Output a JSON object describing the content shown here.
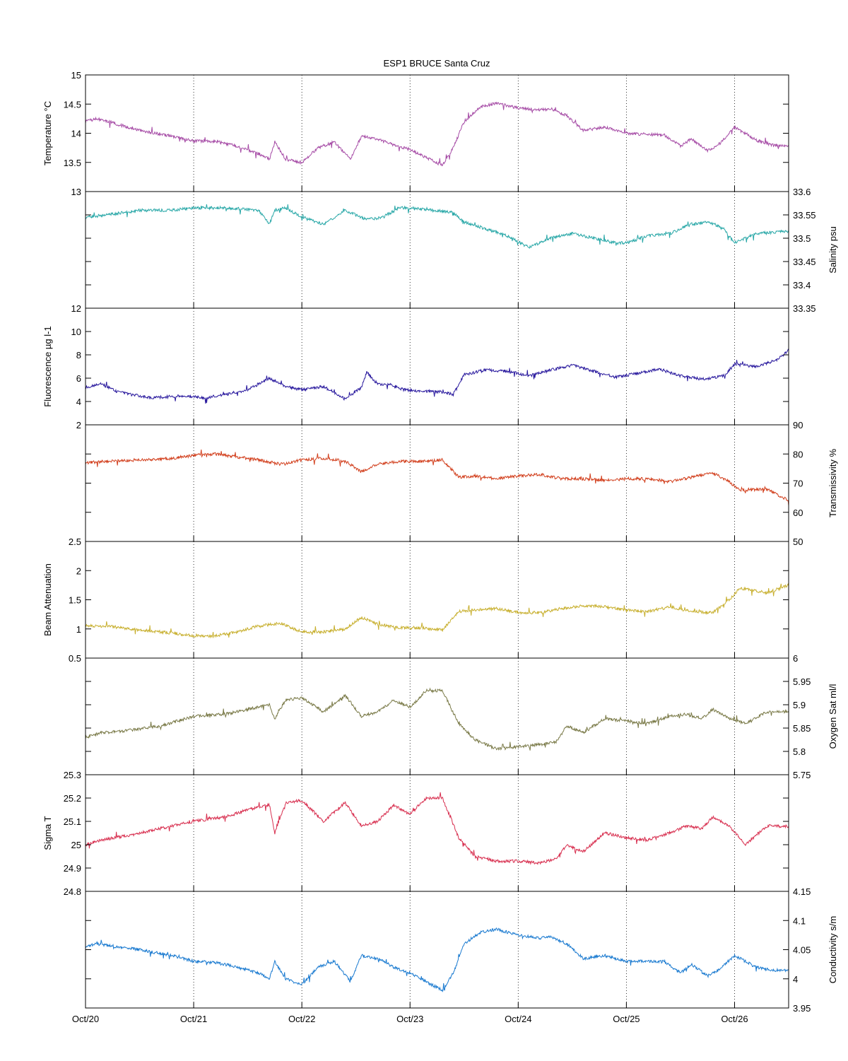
{
  "chart_data": {
    "type": "line",
    "title": "ESP1 BRUCE Santa Cruz",
    "x_range": [
      "Oct/20",
      "Oct/26 12:00"
    ],
    "x_tick_labels": [
      "Oct/20",
      "Oct/21",
      "Oct/22",
      "Oct/23",
      "Oct/24",
      "Oct/25",
      "Oct/26"
    ],
    "x_grid": "dotted vertical lines at each day",
    "panels": [
      {
        "id": "temperature",
        "ylabel": "Temperature °C",
        "axis_side": "left",
        "color": "#a64ca6",
        "ylim": [
          13,
          15
        ],
        "tick_values": [
          13,
          13.5,
          14,
          14.5,
          15
        ],
        "tick_labels": [
          "13",
          "13.5",
          "14",
          "14.5",
          "15"
        ],
        "x": [
          0,
          0.1,
          0.3,
          0.5,
          0.8,
          1.0,
          1.2,
          1.4,
          1.6,
          1.7,
          1.75,
          1.85,
          2.0,
          2.15,
          2.3,
          2.45,
          2.55,
          2.7,
          2.85,
          3.0,
          3.15,
          3.3,
          3.4,
          3.5,
          3.65,
          3.8,
          4.0,
          4.2,
          4.3,
          4.45,
          4.6,
          4.8,
          5.0,
          5.2,
          5.35,
          5.5,
          5.6,
          5.75,
          5.85,
          6.0,
          6.1,
          6.2,
          6.35,
          6.5
        ],
        "y": [
          14.2,
          14.25,
          14.15,
          14.05,
          13.95,
          13.87,
          13.86,
          13.78,
          13.65,
          13.55,
          13.85,
          13.55,
          13.5,
          13.75,
          13.85,
          13.55,
          13.95,
          13.9,
          13.8,
          13.72,
          13.58,
          13.45,
          13.75,
          14.2,
          14.45,
          14.52,
          14.43,
          14.4,
          14.42,
          14.3,
          14.05,
          14.1,
          14.0,
          13.98,
          13.97,
          13.78,
          13.9,
          13.7,
          13.8,
          14.1,
          14.0,
          13.88,
          13.8,
          13.77
        ]
      },
      {
        "id": "salinity",
        "ylabel": "Salinity psu",
        "axis_side": "right",
        "color": "#2aa8a8",
        "ylim": [
          33.35,
          33.6
        ],
        "tick_values": [
          33.35,
          33.4,
          33.45,
          33.5,
          33.55,
          33.6
        ],
        "tick_labels": [
          "33.35",
          "33.4",
          "33.45",
          "33.5",
          "33.55",
          "33.6"
        ],
        "x": [
          0,
          0.2,
          0.5,
          0.8,
          1.0,
          1.3,
          1.6,
          1.7,
          1.75,
          1.85,
          2.0,
          2.2,
          2.4,
          2.6,
          2.75,
          2.9,
          3.0,
          3.2,
          3.4,
          3.5,
          3.7,
          3.9,
          4.1,
          4.3,
          4.5,
          4.7,
          4.9,
          5.0,
          5.2,
          5.4,
          5.6,
          5.75,
          5.9,
          6.0,
          6.2,
          6.5
        ],
        "y": [
          33.545,
          33.55,
          33.56,
          33.56,
          33.565,
          33.565,
          33.56,
          33.53,
          33.56,
          33.565,
          33.545,
          33.53,
          33.56,
          33.54,
          33.545,
          33.565,
          33.565,
          33.56,
          33.555,
          33.535,
          33.52,
          33.505,
          33.48,
          33.5,
          33.51,
          33.5,
          33.49,
          33.49,
          33.505,
          33.51,
          33.53,
          33.535,
          33.52,
          33.49,
          33.51,
          33.515
        ]
      },
      {
        "id": "fluorescence",
        "ylabel": "Fluorescence µg l-1",
        "axis_side": "left",
        "color": "#2a1a9e",
        "ylim": [
          2,
          12
        ],
        "tick_values": [
          2,
          4,
          6,
          8,
          10,
          12
        ],
        "tick_labels": [
          "2",
          "4",
          "6",
          "8",
          "10",
          "12"
        ],
        "x": [
          0,
          0.15,
          0.3,
          0.6,
          0.9,
          1.1,
          1.3,
          1.5,
          1.7,
          1.85,
          2.0,
          2.2,
          2.4,
          2.55,
          2.6,
          2.7,
          2.8,
          2.95,
          3.1,
          3.3,
          3.4,
          3.5,
          3.7,
          3.9,
          4.1,
          4.3,
          4.5,
          4.7,
          4.9,
          5.1,
          5.3,
          5.5,
          5.7,
          5.9,
          6.0,
          6.2,
          6.4,
          6.5
        ],
        "y": [
          5.2,
          5.5,
          4.8,
          4.3,
          4.5,
          4.3,
          4.6,
          5.0,
          6.0,
          5.3,
          5.0,
          5.3,
          4.2,
          5.2,
          6.5,
          5.5,
          5.5,
          5.0,
          4.9,
          4.8,
          4.6,
          6.3,
          6.7,
          6.6,
          6.2,
          6.7,
          7.1,
          6.6,
          6.1,
          6.4,
          6.8,
          6.2,
          5.9,
          6.2,
          7.2,
          7.0,
          7.6,
          8.4
        ]
      },
      {
        "id": "transmissivity",
        "ylabel": "Transmissivity %",
        "axis_side": "right",
        "color": "#d2401e",
        "ylim": [
          50,
          90
        ],
        "tick_values": [
          50,
          60,
          70,
          80,
          90
        ],
        "tick_labels": [
          "50",
          "60",
          "70",
          "80",
          "90"
        ],
        "x": [
          0,
          0.2,
          0.5,
          0.8,
          1.0,
          1.2,
          1.4,
          1.6,
          1.8,
          2.0,
          2.2,
          2.4,
          2.55,
          2.7,
          2.9,
          3.1,
          3.3,
          3.45,
          3.6,
          3.8,
          4.0,
          4.2,
          4.4,
          4.6,
          4.8,
          5.0,
          5.2,
          5.4,
          5.6,
          5.8,
          5.95,
          6.05,
          6.3,
          6.5
        ],
        "y": [
          77,
          77.5,
          78,
          78.5,
          79.5,
          80,
          79,
          78,
          76.5,
          78,
          78.5,
          77.5,
          74,
          76.5,
          77.5,
          77.5,
          78,
          72,
          72.5,
          71.5,
          72.5,
          73,
          71.5,
          71.5,
          71,
          71.5,
          71.5,
          70.5,
          72,
          73.5,
          70.5,
          67.5,
          68,
          64
        ]
      },
      {
        "id": "beam_attenuation",
        "ylabel": "Beam Attenuation",
        "axis_side": "left",
        "color": "#c8b030",
        "ylim": [
          0.5,
          2.5
        ],
        "tick_values": [
          0.5,
          1,
          1.5,
          2,
          2.5
        ],
        "tick_labels": [
          "0.5",
          "1",
          "1.5",
          "2",
          "2.5"
        ],
        "x": [
          0,
          0.2,
          0.5,
          0.8,
          1.0,
          1.2,
          1.4,
          1.6,
          1.8,
          2.0,
          2.2,
          2.4,
          2.55,
          2.7,
          2.9,
          3.1,
          3.3,
          3.45,
          3.6,
          3.8,
          4.0,
          4.2,
          4.4,
          4.6,
          4.8,
          5.0,
          5.2,
          5.4,
          5.6,
          5.8,
          5.95,
          6.05,
          6.3,
          6.5
        ],
        "y": [
          1.05,
          1.05,
          0.98,
          0.93,
          0.88,
          0.88,
          0.95,
          1.05,
          1.1,
          0.95,
          0.95,
          1.0,
          1.2,
          1.08,
          1.02,
          1.02,
          0.98,
          1.3,
          1.32,
          1.35,
          1.28,
          1.28,
          1.35,
          1.4,
          1.38,
          1.32,
          1.3,
          1.38,
          1.3,
          1.28,
          1.5,
          1.7,
          1.62,
          1.75
        ]
      },
      {
        "id": "oxygen",
        "ylabel": "Oxygen Sat ml/l",
        "axis_side": "right",
        "color": "#7a7a48",
        "ylim": [
          5.75,
          6
        ],
        "tick_values": [
          5.75,
          5.8,
          5.85,
          5.9,
          5.95,
          6
        ],
        "tick_labels": [
          "5.75",
          "5.8",
          "5.85",
          "5.9",
          "5.95",
          "6"
        ],
        "x": [
          0,
          0.15,
          0.4,
          0.7,
          1.0,
          1.3,
          1.5,
          1.7,
          1.75,
          1.85,
          2.0,
          2.2,
          2.4,
          2.55,
          2.7,
          2.85,
          3.0,
          3.15,
          3.3,
          3.45,
          3.6,
          3.8,
          4.0,
          4.2,
          4.35,
          4.45,
          4.6,
          4.8,
          5.0,
          5.2,
          5.4,
          5.55,
          5.7,
          5.8,
          5.95,
          6.1,
          6.3,
          6.5
        ],
        "y": [
          5.83,
          5.84,
          5.845,
          5.855,
          5.875,
          5.88,
          5.89,
          5.9,
          5.87,
          5.91,
          5.915,
          5.885,
          5.92,
          5.875,
          5.885,
          5.91,
          5.895,
          5.93,
          5.93,
          5.86,
          5.825,
          5.805,
          5.81,
          5.815,
          5.82,
          5.855,
          5.84,
          5.87,
          5.865,
          5.86,
          5.875,
          5.88,
          5.87,
          5.89,
          5.87,
          5.86,
          5.885,
          5.885
        ]
      },
      {
        "id": "sigma_t",
        "ylabel": "Sigma T",
        "axis_side": "left",
        "color": "#d83050",
        "ylim": [
          24.8,
          25.3
        ],
        "tick_values": [
          24.8,
          24.9,
          25,
          25.1,
          25.2,
          25.3
        ],
        "tick_labels": [
          "24.8",
          "24.9",
          "25",
          "25.1",
          "25.2",
          "25.3"
        ],
        "x": [
          0,
          0.15,
          0.4,
          0.7,
          1.0,
          1.3,
          1.5,
          1.7,
          1.75,
          1.85,
          2.0,
          2.2,
          2.4,
          2.55,
          2.7,
          2.85,
          3.0,
          3.15,
          3.3,
          3.45,
          3.6,
          3.8,
          4.0,
          4.2,
          4.35,
          4.45,
          4.6,
          4.8,
          5.0,
          5.2,
          5.4,
          5.55,
          5.7,
          5.8,
          5.95,
          6.1,
          6.3,
          6.5
        ],
        "y": [
          25.0,
          25.02,
          25.04,
          25.07,
          25.1,
          25.12,
          25.15,
          25.17,
          25.05,
          25.18,
          25.19,
          25.1,
          25.18,
          25.08,
          25.1,
          25.17,
          25.13,
          25.2,
          25.2,
          25.03,
          24.95,
          24.93,
          24.93,
          24.92,
          24.94,
          25.0,
          24.97,
          25.05,
          25.03,
          25.02,
          25.05,
          25.08,
          25.07,
          25.12,
          25.08,
          25.0,
          25.08,
          25.08
        ]
      },
      {
        "id": "conductivity",
        "ylabel": "Conductivity s/m",
        "axis_side": "right",
        "color": "#1a7ad0",
        "ylim": [
          3.95,
          4.15
        ],
        "tick_values": [
          3.95,
          4,
          4.05,
          4.1,
          4.15
        ],
        "tick_labels": [
          "3.95",
          "4",
          "4.05",
          "4.1",
          "4.15"
        ],
        "x": [
          0,
          0.1,
          0.3,
          0.5,
          0.8,
          1.0,
          1.2,
          1.4,
          1.6,
          1.7,
          1.75,
          1.85,
          2.0,
          2.15,
          2.3,
          2.45,
          2.55,
          2.7,
          2.85,
          3.0,
          3.15,
          3.3,
          3.4,
          3.5,
          3.65,
          3.8,
          4.0,
          4.2,
          4.3,
          4.45,
          4.6,
          4.8,
          5.0,
          5.2,
          5.35,
          5.5,
          5.6,
          5.75,
          5.85,
          6.0,
          6.1,
          6.2,
          6.35,
          6.5
        ],
        "y": [
          4.055,
          4.06,
          4.055,
          4.05,
          4.04,
          4.03,
          4.028,
          4.02,
          4.01,
          4.0,
          4.03,
          4.0,
          3.99,
          4.02,
          4.03,
          3.995,
          4.04,
          4.035,
          4.02,
          4.01,
          3.995,
          3.98,
          4.01,
          4.06,
          4.08,
          4.085,
          4.075,
          4.07,
          4.072,
          4.06,
          4.035,
          4.04,
          4.03,
          4.03,
          4.03,
          4.01,
          4.025,
          4.005,
          4.015,
          4.04,
          4.03,
          4.02,
          4.015,
          4.015
        ]
      }
    ]
  }
}
